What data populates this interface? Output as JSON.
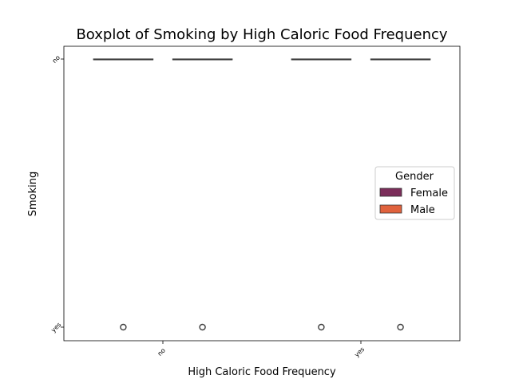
{
  "chart_data": {
    "type": "boxplot",
    "title": "Boxplot of Smoking by High Caloric Food Frequency",
    "xlabel": "High Caloric Food Frequency",
    "ylabel": "Smoking",
    "categories": [
      "no",
      "yes"
    ],
    "y_categories": [
      "no",
      "yes"
    ],
    "legend": {
      "title": "Gender",
      "placement": "center-right",
      "entries": [
        {
          "name": "Female",
          "color": "#7b2d5a"
        },
        {
          "name": "Male",
          "color": "#e0623d"
        }
      ]
    },
    "series": [
      {
        "name": "Female",
        "color": "#7b2d5a",
        "boxes": [
          {
            "category": "no",
            "median": "no",
            "q1": "no",
            "q3": "no",
            "whisker_low": "no",
            "whisker_high": "no",
            "outliers": [
              "yes"
            ]
          },
          {
            "category": "yes",
            "median": "no",
            "q1": "no",
            "q3": "no",
            "whisker_low": "no",
            "whisker_high": "no",
            "outliers": [
              "yes"
            ]
          }
        ]
      },
      {
        "name": "Male",
        "color": "#e0623d",
        "boxes": [
          {
            "category": "no",
            "median": "no",
            "q1": "no",
            "q3": "no",
            "whisker_low": "no",
            "whisker_high": "no",
            "outliers": [
              "yes"
            ]
          },
          {
            "category": "yes",
            "median": "no",
            "q1": "no",
            "q3": "no",
            "whisker_low": "no",
            "whisker_high": "no",
            "outliers": [
              "yes"
            ]
          }
        ]
      }
    ],
    "grid": false
  }
}
